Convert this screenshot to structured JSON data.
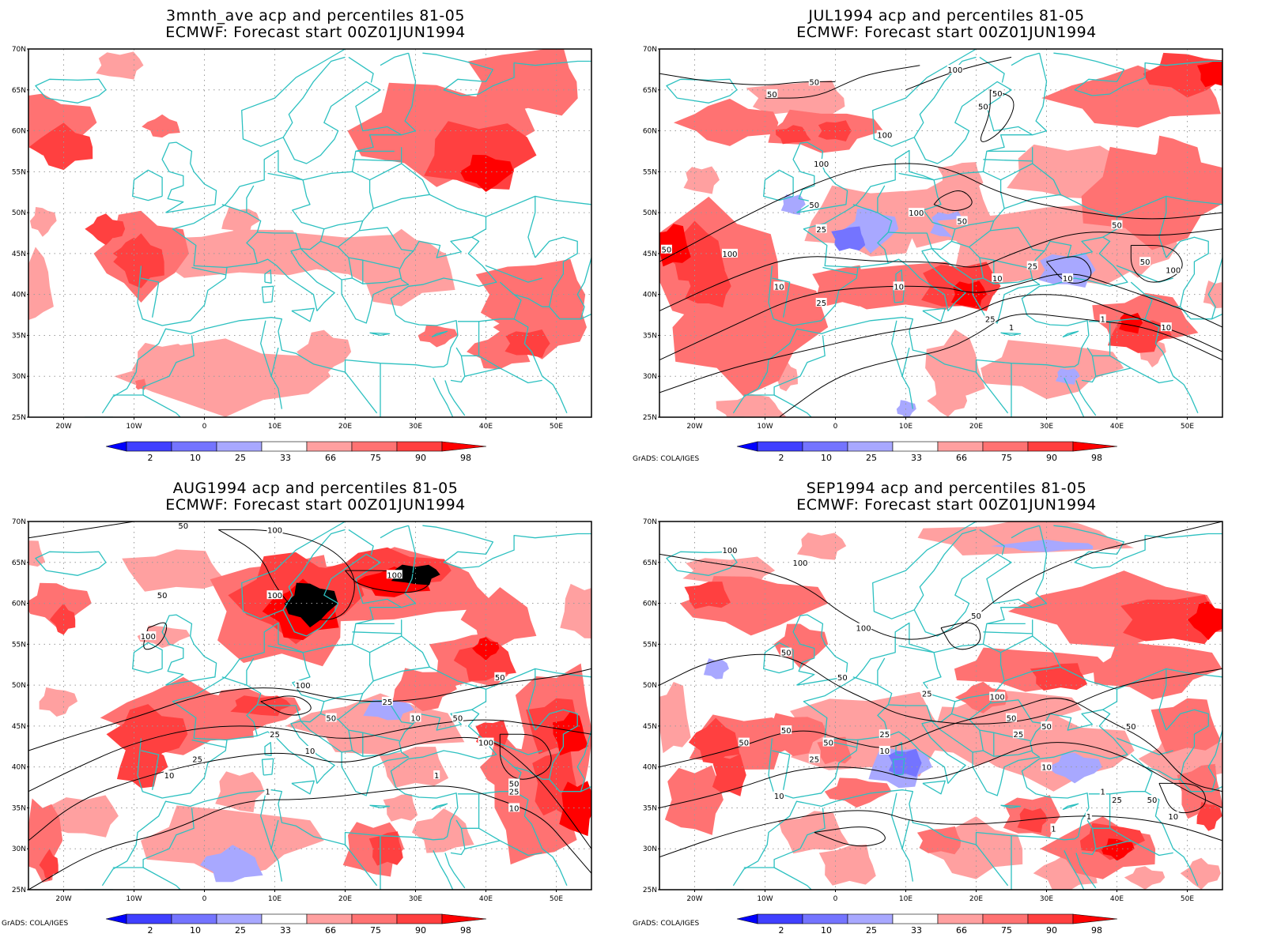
{
  "panels": [
    {
      "title_line1": "3mnth_ave acp and percentiles 81-05",
      "title_line2": "ECMWF: Forecast start 00Z01JUN1994",
      "contour_labels": [],
      "credit": ""
    },
    {
      "title_line1": "JUL1994 acp and percentiles 81-05",
      "title_line2": "ECMWF: Forecast start 00Z01JUN1994",
      "contour_labels": [
        "100",
        "50",
        "50",
        "50",
        "50",
        "100",
        "100",
        "50",
        "50",
        "100",
        "25",
        "50",
        "50",
        "25",
        "10",
        "10",
        "25",
        "100",
        "10",
        "1",
        "10",
        "25",
        "10",
        "1",
        "50",
        "100"
      ],
      "credit": "GrADS: COLA/IGES"
    },
    {
      "title_line1": "AUG1994 acp and percentiles 81-05",
      "title_line2": "ECMWF: Forecast start 00Z01JUN1994",
      "contour_labels": [
        "50",
        "100",
        "50",
        "100",
        "100",
        "100",
        "100",
        "50",
        "25",
        "10",
        "50",
        "10",
        "25",
        "25",
        "10",
        "50",
        "1",
        "100",
        "50",
        "25",
        "10",
        "1"
      ],
      "credit": "GrADS: COLA/IGES"
    },
    {
      "title_line1": "SEP1994 acp and percentiles 81-05",
      "title_line2": "ECMWF: Forecast start 00Z01JUN1994",
      "contour_labels": [
        "100",
        "100",
        "50",
        "100",
        "50",
        "100",
        "50",
        "50",
        "25",
        "25",
        "10",
        "50",
        "50",
        "50",
        "50",
        "10",
        "25",
        "25",
        "10",
        "50",
        "1",
        "1",
        "50",
        "25",
        "10",
        "1"
      ],
      "credit": "GrADS: COLA/IGES"
    }
  ],
  "lat_labels": [
    "70N",
    "65N",
    "60N",
    "55N",
    "50N",
    "45N",
    "40N",
    "35N",
    "30N",
    "25N"
  ],
  "lon_labels": [
    "20W",
    "10W",
    "0",
    "10E",
    "20E",
    "30E",
    "40E",
    "50E"
  ],
  "colorbar": {
    "labels": [
      "2",
      "10",
      "25",
      "33",
      "66",
      "75",
      "90",
      "98"
    ],
    "colors": [
      "#0000ff",
      "#4040ff",
      "#7474ff",
      "#a8a8ff",
      "#ffffff",
      "#ffa0a0",
      "#ff7272",
      "#ff4040",
      "#ff0000"
    ]
  },
  "colors": {
    "coast": "#2cc0c0",
    "contour": "#000000",
    "grid": "#9a9a9a",
    "frame": "#000000"
  }
}
